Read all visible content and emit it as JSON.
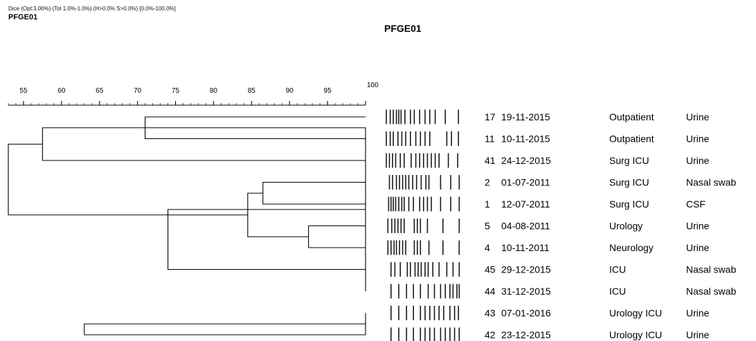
{
  "header": {
    "subtitle": "Dice (Opt:3.00%) (Tol 1.0%-1.0%) (H>0.0% S>0.0%) [0.0%-100.0%]",
    "left_title": "PFGE01",
    "center_title": "PFGE01"
  },
  "dendrogram": {
    "scale_ticks": [
      "55",
      "60",
      "65",
      "70",
      "75",
      "80",
      "85",
      "90",
      "95",
      "100"
    ],
    "scale_min": 53,
    "scale_max": 100,
    "merges": [
      {
        "a": 0,
        "b": 1,
        "similarity": 71.0
      },
      {
        "a": 3,
        "b": 4,
        "similarity": 86.5
      },
      {
        "a": 5,
        "b": 6,
        "similarity": 92.5
      },
      {
        "a": 9,
        "b": 10,
        "similarity": 100.0
      },
      {
        "a": 8,
        "b": 11,
        "similarity": 100.0
      },
      {
        "a": 11,
        "b": 2,
        "similarity": 57.5
      },
      {
        "a": 12,
        "b": 13,
        "similarity": 84.5
      },
      {
        "a": 15,
        "b": 7,
        "similarity": 74.0
      },
      {
        "a": 14,
        "b": 10,
        "similarity": 63.0
      },
      {
        "a": 16,
        "b": 17,
        "similarity": 53.0
      }
    ]
  },
  "isolates": [
    {
      "id": "17",
      "date": "19-11-2015",
      "ward": "Outpatient",
      "specimen": "Urine",
      "bands": [
        0.02,
        0.07,
        0.11,
        0.15,
        0.18,
        0.21,
        0.26,
        0.33,
        0.38,
        0.45,
        0.52,
        0.58,
        0.65,
        0.78,
        0.95
      ]
    },
    {
      "id": "11",
      "date": "10-11-2015",
      "ward": "Outpatient",
      "specimen": "Urine",
      "bands": [
        0.02,
        0.07,
        0.11,
        0.17,
        0.22,
        0.27,
        0.33,
        0.4,
        0.46,
        0.52,
        0.58,
        0.8,
        0.86,
        0.95
      ]
    },
    {
      "id": "41",
      "date": "24-12-2015",
      "ward": "Surg ICU",
      "specimen": "Urine",
      "bands": [
        0.02,
        0.06,
        0.1,
        0.14,
        0.2,
        0.25,
        0.34,
        0.4,
        0.45,
        0.5,
        0.55,
        0.6,
        0.65,
        0.7,
        0.82,
        0.94
      ]
    },
    {
      "id": "2",
      "date": "01-07-2011",
      "ward": "Surg ICU",
      "specimen": "Nasal swab",
      "bands": [
        0.06,
        0.1,
        0.15,
        0.19,
        0.23,
        0.27,
        0.31,
        0.36,
        0.41,
        0.47,
        0.53,
        0.57,
        0.72,
        0.85,
        0.96
      ]
    },
    {
      "id": "1",
      "date": "12-07-2011",
      "ward": "Surg ICU",
      "specimen": "CSF",
      "bands": [
        0.05,
        0.08,
        0.11,
        0.14,
        0.18,
        0.22,
        0.25,
        0.31,
        0.37,
        0.45,
        0.5,
        0.55,
        0.6,
        0.72,
        0.85,
        0.96
      ]
    },
    {
      "id": "5",
      "date": "04-08-2011",
      "ward": "Urology",
      "specimen": "Urine",
      "bands": [
        0.04,
        0.09,
        0.13,
        0.17,
        0.21,
        0.25,
        0.38,
        0.42,
        0.46,
        0.55,
        0.75,
        0.96
      ]
    },
    {
      "id": "4",
      "date": "10-11-2011",
      "ward": "Neurology",
      "specimen": "Urine",
      "bands": [
        0.04,
        0.08,
        0.12,
        0.15,
        0.19,
        0.23,
        0.27,
        0.38,
        0.42,
        0.46,
        0.57,
        0.75,
        0.96
      ]
    },
    {
      "id": "45",
      "date": "29-12-2015",
      "ward": "ICU",
      "specimen": "Nasal swab",
      "bands": [
        0.08,
        0.13,
        0.2,
        0.29,
        0.33,
        0.39,
        0.43,
        0.47,
        0.52,
        0.56,
        0.62,
        0.7,
        0.8,
        0.88,
        0.96
      ]
    },
    {
      "id": "44",
      "date": "31-12-2015",
      "ward": "ICU",
      "specimen": "Nasal swab",
      "bands": [
        0.08,
        0.18,
        0.28,
        0.37,
        0.46,
        0.56,
        0.64,
        0.72,
        0.78,
        0.84,
        0.88,
        0.93,
        0.96
      ]
    },
    {
      "id": "43",
      "date": "07-01-2016",
      "ward": "Urology ICU",
      "specimen": "Urine",
      "bands": [
        0.08,
        0.18,
        0.28,
        0.37,
        0.46,
        0.52,
        0.58,
        0.64,
        0.7,
        0.76,
        0.84,
        0.9,
        0.95
      ]
    },
    {
      "id": "42",
      "date": "23-12-2015",
      "ward": "Urology ICU",
      "specimen": "Urine",
      "bands": [
        0.08,
        0.18,
        0.28,
        0.37,
        0.46,
        0.52,
        0.58,
        0.64,
        0.72,
        0.78,
        0.84,
        0.9,
        0.96
      ]
    }
  ]
}
